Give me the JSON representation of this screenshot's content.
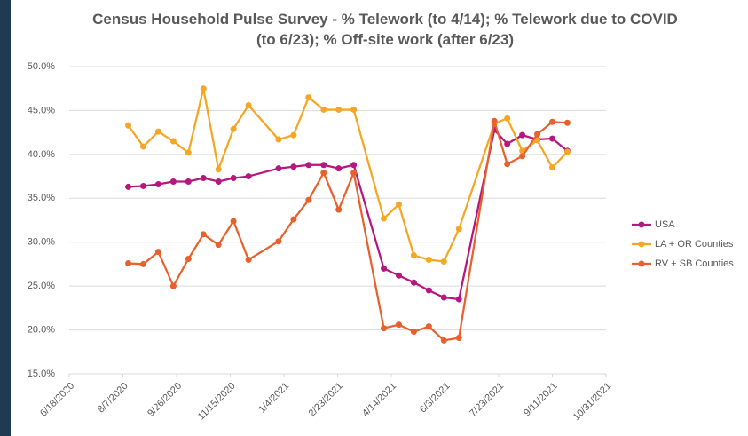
{
  "chart_data": {
    "type": "line",
    "title": "Census Household Pulse Survey - % Telework (to 4/14); % Telework due to COVID (to 6/23); % Off-site work (after 6/23)",
    "x": [
      "2020-08-12",
      "2020-08-26",
      "2020-09-09",
      "2020-09-23",
      "2020-10-07",
      "2020-10-21",
      "2020-11-04",
      "2020-11-18",
      "2020-12-02",
      "2020-12-30",
      "2021-01-13",
      "2021-01-27",
      "2021-02-10",
      "2021-02-24",
      "2021-03-10",
      "2021-04-07",
      "2021-04-21",
      "2021-05-05",
      "2021-05-19",
      "2021-06-02",
      "2021-06-16",
      "2021-07-19",
      "2021-07-31",
      "2021-08-14",
      "2021-08-28",
      "2021-09-11",
      "2021-09-25"
    ],
    "series": [
      {
        "name": "USA",
        "color": "#b5177f",
        "values": [
          36.3,
          36.4,
          36.6,
          36.9,
          36.9,
          37.3,
          36.9,
          37.3,
          37.5,
          38.4,
          38.6,
          38.8,
          38.8,
          38.4,
          38.8,
          27.0,
          26.2,
          25.4,
          24.5,
          23.7,
          23.5,
          42.8,
          41.2,
          42.2,
          41.7,
          41.8,
          40.4
        ]
      },
      {
        "name": "LA + OR Counties",
        "color": "#f5a623",
        "values": [
          43.3,
          40.9,
          42.6,
          41.5,
          40.2,
          47.5,
          38.3,
          42.9,
          45.6,
          41.7,
          42.2,
          46.5,
          45.1,
          45.1,
          45.1,
          32.7,
          34.3,
          28.5,
          28.0,
          27.8,
          31.5,
          43.5,
          44.1,
          40.4,
          41.6,
          38.5,
          40.3
        ]
      },
      {
        "name": "RV + SB Counties",
        "color": "#e8602c",
        "values": [
          27.6,
          27.5,
          28.9,
          25.0,
          28.1,
          30.9,
          29.7,
          32.4,
          28.0,
          30.1,
          32.6,
          34.8,
          37.9,
          33.7,
          37.9,
          20.2,
          20.6,
          19.8,
          20.4,
          18.8,
          19.1,
          43.8,
          38.9,
          39.8,
          42.3,
          43.7,
          43.6
        ]
      }
    ],
    "xlim": [
      "2020-06-18",
      "2021-10-31"
    ],
    "xticks": [
      {
        "value": "2020-06-18",
        "label": "6/18/2020"
      },
      {
        "value": "2020-08-07",
        "label": "8/7/2020"
      },
      {
        "value": "2020-09-26",
        "label": "9/26/2020"
      },
      {
        "value": "2020-11-15",
        "label": "11/15/2020"
      },
      {
        "value": "2021-01-04",
        "label": "1/4/2021"
      },
      {
        "value": "2021-02-23",
        "label": "2/23/2021"
      },
      {
        "value": "2021-04-14",
        "label": "4/14/2021"
      },
      {
        "value": "2021-06-03",
        "label": "6/3/2021"
      },
      {
        "value": "2021-07-23",
        "label": "7/23/2021"
      },
      {
        "value": "2021-09-11",
        "label": "9/11/2021"
      },
      {
        "value": "2021-10-31",
        "label": "10/31/2021"
      }
    ],
    "ylim": [
      15,
      50
    ],
    "yticks": [
      {
        "value": 15,
        "label": "15.0%"
      },
      {
        "value": 20,
        "label": "20.0%"
      },
      {
        "value": 25,
        "label": "25.0%"
      },
      {
        "value": 30,
        "label": "30.0%"
      },
      {
        "value": 35,
        "label": "35.0%"
      },
      {
        "value": 40,
        "label": "40.0%"
      },
      {
        "value": 45,
        "label": "45.0%"
      },
      {
        "value": 50,
        "label": "50.0%"
      }
    ],
    "grid": true,
    "legend": "right"
  }
}
